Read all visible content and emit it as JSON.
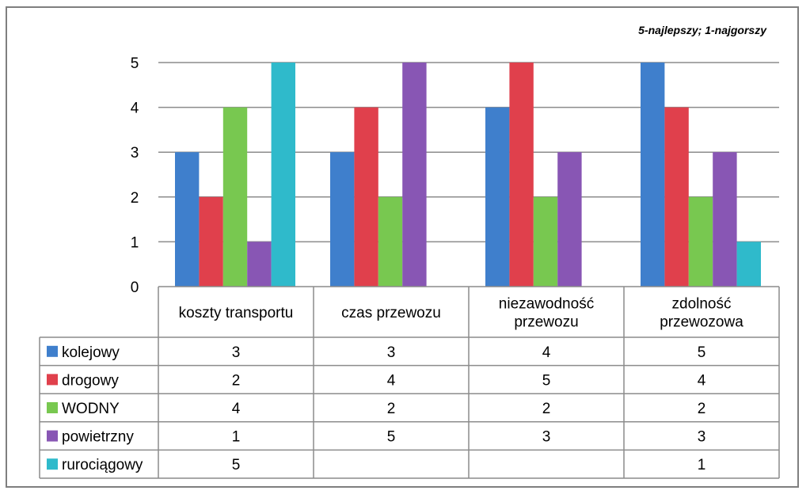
{
  "chart_data": {
    "type": "bar",
    "annotation": "5-najlepszy; 1-najgorszy",
    "categories": [
      [
        "koszty transportu"
      ],
      [
        "czas przewozu"
      ],
      [
        "niezawodność",
        "przewozu"
      ],
      [
        "zdolność",
        "przewozowa"
      ]
    ],
    "ylim": [
      0,
      5
    ],
    "yticks": [
      0,
      1,
      2,
      3,
      4,
      5
    ],
    "grid": true,
    "legend": "data-table-left",
    "series": [
      {
        "name": "kolejowy",
        "color": "#3F7FCC",
        "values": [
          3,
          3,
          4,
          5
        ]
      },
      {
        "name": "drogowy",
        "color": "#E0404C",
        "values": [
          2,
          4,
          5,
          4
        ]
      },
      {
        "name": "WODNY",
        "color": "#78C850",
        "values": [
          4,
          2,
          2,
          2
        ]
      },
      {
        "name": "powietrzny",
        "color": "#8856B4",
        "values": [
          1,
          5,
          3,
          3
        ]
      },
      {
        "name": "rurociągowy",
        "color": "#2FBACB",
        "values": [
          5,
          null,
          null,
          1
        ]
      }
    ]
  }
}
